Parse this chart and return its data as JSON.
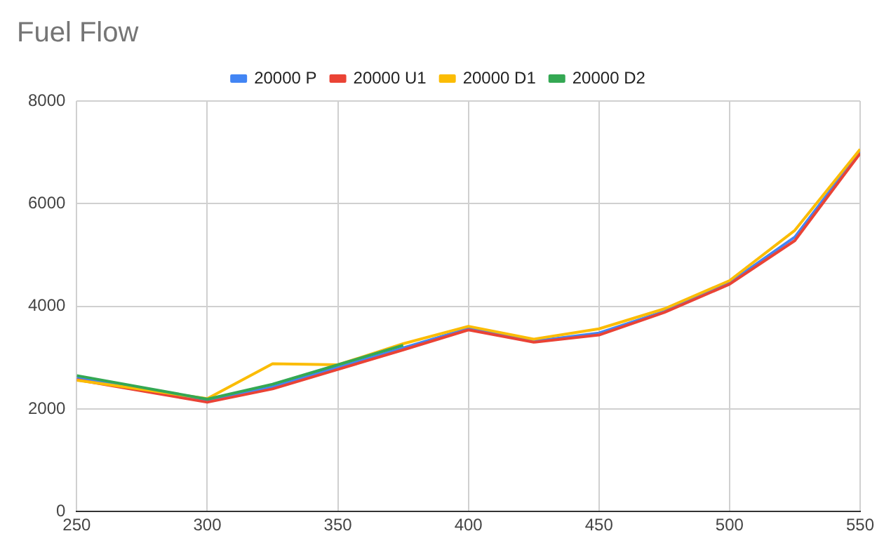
{
  "chart_data": {
    "type": "line",
    "title": "Fuel Flow",
    "x": [
      250,
      275,
      300,
      325,
      350,
      375,
      400,
      425,
      450,
      475,
      500,
      525,
      550
    ],
    "series": [
      {
        "name": "20000 P",
        "color": "#4285f4",
        "values": [
          2610,
          2380,
          2160,
          2430,
          2810,
          3190,
          3570,
          3320,
          3480,
          3900,
          4460,
          5350,
          7020
        ]
      },
      {
        "name": "20000 U1",
        "color": "#ea4335",
        "values": [
          2570,
          2350,
          2130,
          2390,
          2770,
          3150,
          3540,
          3300,
          3440,
          3880,
          4430,
          5280,
          6980
        ]
      },
      {
        "name": "20000 D1",
        "color": "#fbbc04",
        "values": [
          2560,
          2380,
          2200,
          2880,
          2860,
          3270,
          3610,
          3360,
          3560,
          3950,
          4500,
          5480,
          7060
        ]
      },
      {
        "name": "20000 D2",
        "color": "#34a853",
        "values": [
          2650,
          2420,
          2190,
          2480,
          2860,
          3240,
          null,
          null,
          null,
          null,
          null,
          null,
          null
        ]
      }
    ],
    "xlim": [
      250,
      550
    ],
    "xticks": [
      250,
      300,
      350,
      400,
      450,
      500,
      550
    ],
    "ylim": [
      0,
      8000
    ],
    "yticks": [
      0,
      2000,
      4000,
      6000,
      8000
    ],
    "grid": true,
    "legend": "top",
    "marker": "none",
    "line_style": "solid"
  }
}
